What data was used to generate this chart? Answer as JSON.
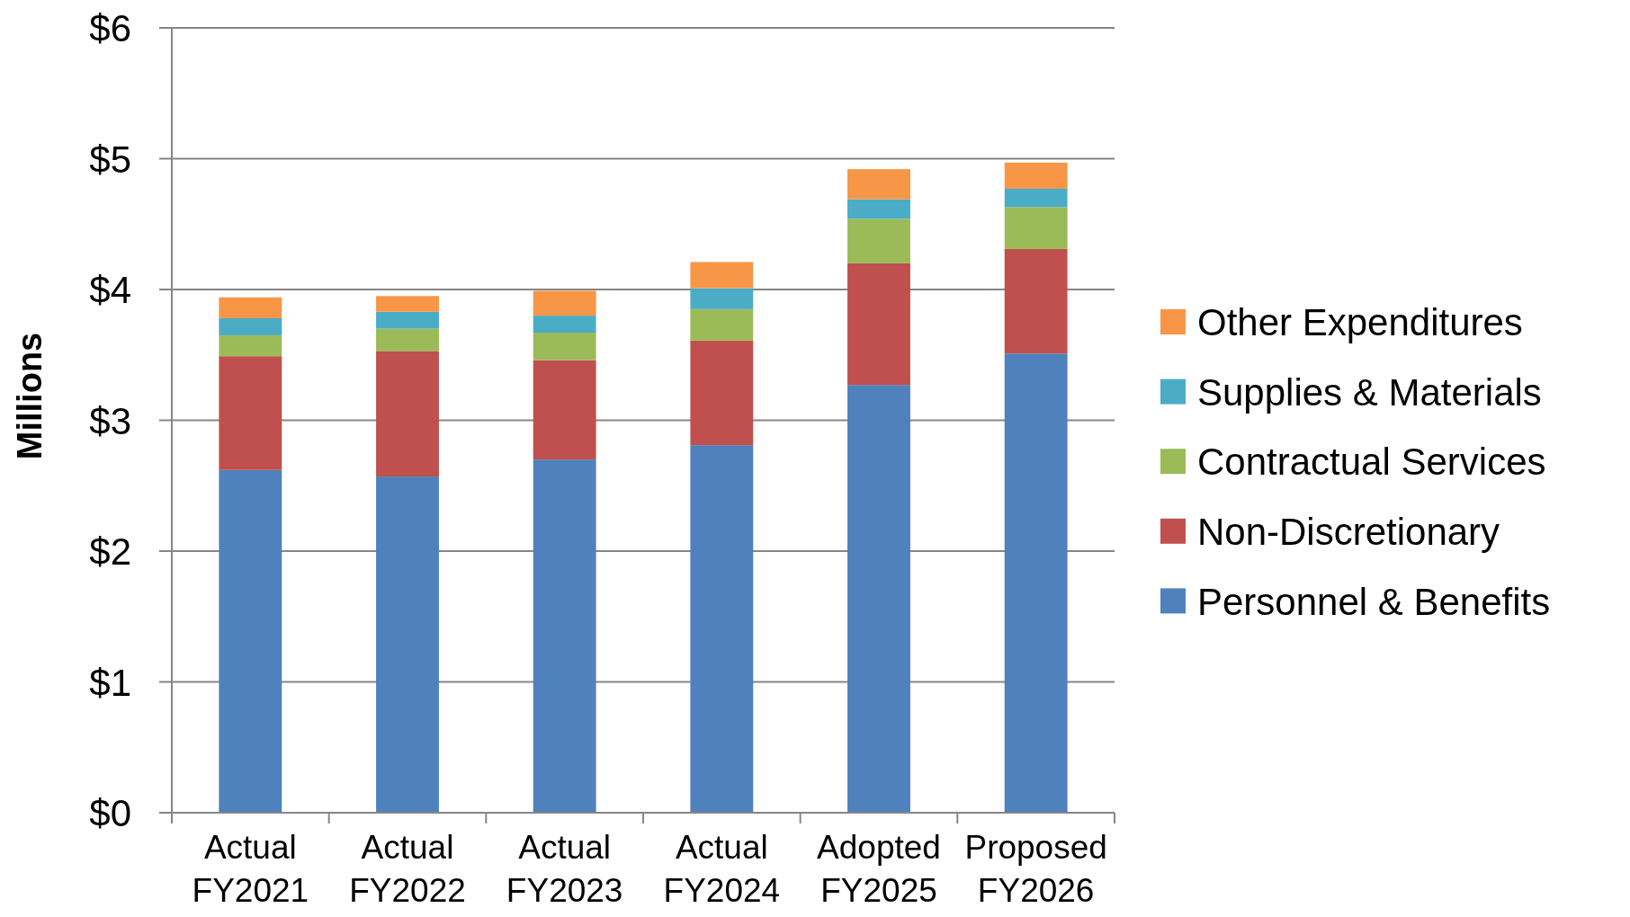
{
  "chart_data": {
    "type": "bar",
    "stacked": true,
    "ylabel": "Millions",
    "categories": [
      "Actual FY2021",
      "Actual FY2022",
      "Actual FY2023",
      "Actual FY2024",
      "Adopted FY2025",
      "Proposed FY2026"
    ],
    "series": [
      {
        "name": "Personnel & Benefits",
        "color": "#4f81bd",
        "values": [
          2.62,
          2.57,
          2.7,
          2.81,
          3.27,
          3.51
        ]
      },
      {
        "name": "Non-Discretionary",
        "color": "#c0504d",
        "values": [
          0.87,
          0.96,
          0.76,
          0.8,
          0.93,
          0.8
        ]
      },
      {
        "name": "Contractual Services",
        "color": "#9bbb59",
        "values": [
          0.16,
          0.17,
          0.21,
          0.24,
          0.34,
          0.32
        ]
      },
      {
        "name": "Supplies & Materials",
        "color": "#4bacc6",
        "values": [
          0.13,
          0.13,
          0.13,
          0.16,
          0.15,
          0.14
        ]
      },
      {
        "name": "Other Expenditures",
        "color": "#f79646",
        "values": [
          0.16,
          0.12,
          0.19,
          0.2,
          0.23,
          0.2
        ]
      }
    ],
    "ylim": [
      0,
      6
    ],
    "yticks": [
      {
        "value": 0,
        "label": "$0"
      },
      {
        "value": 1,
        "label": "$1"
      },
      {
        "value": 2,
        "label": "$2"
      },
      {
        "value": 3,
        "label": "$3"
      },
      {
        "value": 4,
        "label": "$4"
      },
      {
        "value": 5,
        "label": "$5"
      },
      {
        "value": 6,
        "label": "$6"
      }
    ],
    "grid": "y",
    "legend": "right"
  }
}
